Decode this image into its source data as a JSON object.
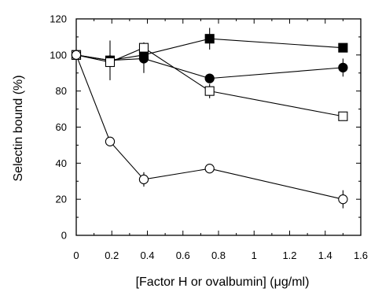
{
  "chart_data": {
    "type": "scatter",
    "title": "",
    "xlabel": "[Factor H  or ovalbumin] (μg/ml)",
    "ylabel": "Selectin bound (%)",
    "xlim": [
      0,
      1.6
    ],
    "ylim": [
      0,
      120
    ],
    "x_ticks": [
      "0",
      "0.2",
      "0.4",
      "0.6",
      "0.8",
      "1",
      "1.2",
      "1.4",
      "1.6"
    ],
    "y_ticks": [
      "0",
      "20",
      "40",
      "60",
      "80",
      "100",
      "120"
    ],
    "grid": false,
    "legend": "none",
    "series": [
      {
        "marker": "filled-square",
        "color": "#000000",
        "points": [
          {
            "x": 0,
            "y": 100,
            "err": 0
          },
          {
            "x": 0.19,
            "y": 97,
            "err": 3
          },
          {
            "x": 0.38,
            "y": 100,
            "err": 3
          },
          {
            "x": 0.75,
            "y": 109,
            "err": 6
          },
          {
            "x": 1.5,
            "y": 104,
            "err": 2
          }
        ]
      },
      {
        "marker": "filled-circle",
        "color": "#000000",
        "points": [
          {
            "x": 0,
            "y": 100,
            "err": 0
          },
          {
            "x": 0.19,
            "y": 97,
            "err": 11
          },
          {
            "x": 0.38,
            "y": 98,
            "err": 8
          },
          {
            "x": 0.75,
            "y": 87,
            "err": 2
          },
          {
            "x": 1.5,
            "y": 93,
            "err": 5
          }
        ]
      },
      {
        "marker": "open-square",
        "color": "#000000",
        "points": [
          {
            "x": 0,
            "y": 100,
            "err": 0
          },
          {
            "x": 0.19,
            "y": 96,
            "err": 3
          },
          {
            "x": 0.38,
            "y": 104,
            "err": 3
          },
          {
            "x": 0.75,
            "y": 80,
            "err": 4
          },
          {
            "x": 1.5,
            "y": 66,
            "err": 2
          }
        ]
      },
      {
        "marker": "open-circle",
        "color": "#000000",
        "points": [
          {
            "x": 0,
            "y": 100,
            "err": 0
          },
          {
            "x": 0.19,
            "y": 52,
            "err": 2
          },
          {
            "x": 0.38,
            "y": 31,
            "err": 4
          },
          {
            "x": 0.75,
            "y": 37,
            "err": 2
          },
          {
            "x": 1.5,
            "y": 20,
            "err": 5
          }
        ]
      }
    ]
  }
}
